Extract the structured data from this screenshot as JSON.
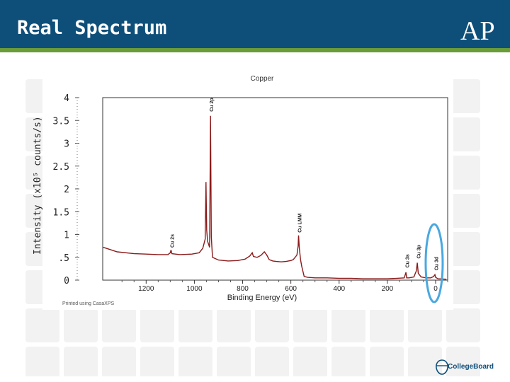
{
  "slide": {
    "title": "Real Spectrum",
    "logo_text": "AP",
    "footer_logo_text": "CollegeBoard"
  },
  "chart_data": {
    "type": "line",
    "title": "Copper",
    "xlabel": "Binding Energy (eV)",
    "ylabel": "Intensity (x10⁵ counts/s)",
    "x_reversed": true,
    "xlim": [
      1380,
      -50
    ],
    "ylim": [
      0,
      4
    ],
    "x_ticks": [
      1200,
      1000,
      800,
      600,
      400,
      200,
      0
    ],
    "y_ticks": [
      "0",
      ".5",
      "1",
      "1.5",
      "2",
      "2.5",
      "3",
      "3.5",
      "4"
    ],
    "y_tick_values": [
      0,
      0.5,
      1,
      1.5,
      2,
      2.5,
      3,
      3.5,
      4
    ],
    "footnote": "Printed using CasaXPS",
    "highlight": {
      "label": "Cu 3d",
      "x": 0
    },
    "peaks": [
      {
        "label": "Cu 2p",
        "x": 933,
        "y": 3.6
      },
      {
        "label": "Cu 2s",
        "x": 1097,
        "y": 0.62
      },
      {
        "label": "Cu LMM",
        "x": 568,
        "y": 0.95
      },
      {
        "label": "Cu 3s",
        "x": 122,
        "y": 0.18
      },
      {
        "label": "Cu 3p",
        "x": 75,
        "y": 0.38
      },
      {
        "label": "Cu 3d",
        "x": 2,
        "y": 0.12
      }
    ],
    "series": [
      {
        "color": "#8b1a1a",
        "points": [
          [
            1378,
            0.72
          ],
          [
            1320,
            0.62
          ],
          [
            1250,
            0.58
          ],
          [
            1200,
            0.57
          ],
          [
            1150,
            0.56
          ],
          [
            1110,
            0.56
          ],
          [
            1100,
            0.6
          ],
          [
            1097,
            0.66
          ],
          [
            1093,
            0.58
          ],
          [
            1060,
            0.56
          ],
          [
            1010,
            0.57
          ],
          [
            980,
            0.6
          ],
          [
            965,
            0.7
          ],
          [
            955,
            0.9
          ],
          [
            952,
            2.15
          ],
          [
            949,
            1.1
          ],
          [
            945,
            0.85
          ],
          [
            937,
            0.72
          ],
          [
            933,
            3.6
          ],
          [
            930,
            0.95
          ],
          [
            925,
            0.5
          ],
          [
            900,
            0.44
          ],
          [
            860,
            0.42
          ],
          [
            820,
            0.43
          ],
          [
            790,
            0.46
          ],
          [
            770,
            0.53
          ],
          [
            760,
            0.6
          ],
          [
            755,
            0.52
          ],
          [
            740,
            0.5
          ],
          [
            725,
            0.54
          ],
          [
            710,
            0.62
          ],
          [
            700,
            0.55
          ],
          [
            690,
            0.45
          ],
          [
            675,
            0.42
          ],
          [
            660,
            0.41
          ],
          [
            640,
            0.4
          ],
          [
            620,
            0.41
          ],
          [
            600,
            0.43
          ],
          [
            590,
            0.45
          ],
          [
            575,
            0.55
          ],
          [
            570,
            0.75
          ],
          [
            568,
            0.98
          ],
          [
            565,
            0.7
          ],
          [
            560,
            0.45
          ],
          [
            555,
            0.3
          ],
          [
            545,
            0.08
          ],
          [
            530,
            0.06
          ],
          [
            500,
            0.05
          ],
          [
            450,
            0.05
          ],
          [
            400,
            0.04
          ],
          [
            350,
            0.04
          ],
          [
            300,
            0.03
          ],
          [
            250,
            0.03
          ],
          [
            200,
            0.03
          ],
          [
            160,
            0.04
          ],
          [
            130,
            0.05
          ],
          [
            123,
            0.17
          ],
          [
            120,
            0.05
          ],
          [
            110,
            0.05
          ],
          [
            90,
            0.07
          ],
          [
            80,
            0.2
          ],
          [
            76,
            0.38
          ],
          [
            72,
            0.15
          ],
          [
            60,
            0.07
          ],
          [
            40,
            0.05
          ],
          [
            20,
            0.05
          ],
          [
            8,
            0.08
          ],
          [
            3,
            0.12
          ],
          [
            0,
            0.06
          ],
          [
            -10,
            0.03
          ],
          [
            -45,
            0.02
          ]
        ]
      }
    ]
  },
  "colors": {
    "header": "#0e4f7a",
    "header_stripe": "#6a9c3a",
    "spectrum": "#8b1a1a",
    "highlight_ellipse": "#4aa8e0"
  }
}
